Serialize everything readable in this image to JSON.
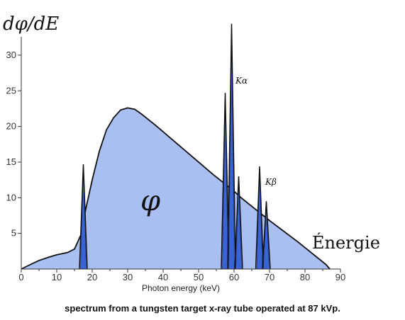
{
  "chart_data": {
    "type": "area",
    "ylabel": "dφ/dE",
    "xlabel": "Photon energy (keV)",
    "xlim": [
      0,
      90
    ],
    "ylim": [
      0,
      35
    ],
    "x_ticks": [
      0,
      10,
      20,
      30,
      40,
      50,
      60,
      70,
      80,
      90
    ],
    "y_ticks": [
      5,
      10,
      15,
      20,
      25,
      30
    ],
    "grid": false,
    "annotations": {
      "area_label": "φ",
      "energy_label": "Énergie",
      "k_alpha": "Kα",
      "k_beta": "Kβ"
    },
    "caption": "spectrum from a tungsten target x-ray tube operated at 87 kVp.",
    "colors": {
      "fill": "#a9bff2",
      "fill_stroke": "#3558c8",
      "line": "#111111"
    },
    "series": [
      {
        "x": [
          0,
          2,
          5,
          8,
          10,
          13,
          15,
          17,
          18,
          20,
          22,
          24,
          26,
          28,
          30,
          32,
          34,
          38,
          42,
          46,
          50,
          54,
          56,
          58,
          60,
          62,
          64,
          66,
          68,
          70,
          74,
          78,
          82,
          86,
          87
        ],
        "values": [
          0,
          0.5,
          1.2,
          1.7,
          2.0,
          2.3,
          2.8,
          5.0,
          8.0,
          12.5,
          16.5,
          19.5,
          21.2,
          22.3,
          22.6,
          22.4,
          21.7,
          20.1,
          18.4,
          16.7,
          15.0,
          13.3,
          12.5,
          11.7,
          10.9,
          10.0,
          9.2,
          8.4,
          7.6,
          6.8,
          5.3,
          3.8,
          2.2,
          0.6,
          0
        ]
      }
    ],
    "peaks": [
      {
        "energy": 17.5,
        "height": 14.7
      },
      {
        "energy": 57.5,
        "height": 24.7
      },
      {
        "energy": 59.3,
        "height": 34.4
      },
      {
        "energy": 61.3,
        "height": 13.0
      },
      {
        "energy": 67.2,
        "height": 14.4
      },
      {
        "energy": 69.1,
        "height": 9.5
      }
    ]
  }
}
